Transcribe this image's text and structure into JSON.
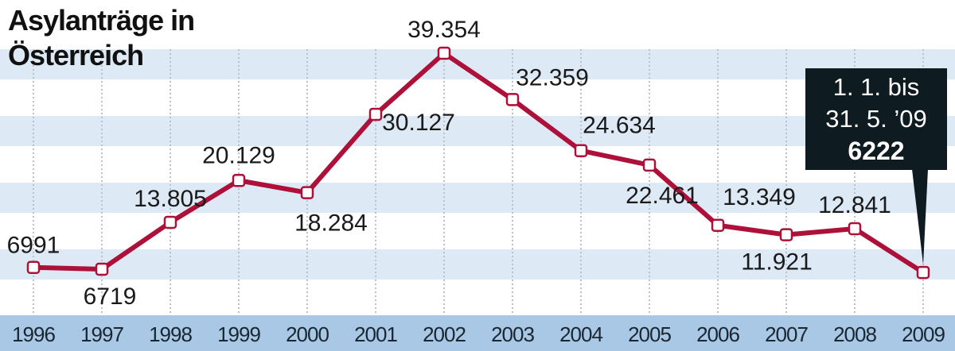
{
  "chart_data": {
    "type": "line",
    "title": "Asylanträge in Österreich",
    "categories": [
      "1996",
      "1997",
      "1998",
      "1999",
      "2000",
      "2001",
      "2002",
      "2003",
      "2004",
      "2005",
      "2006",
      "2007",
      "2008",
      "2009"
    ],
    "values": [
      6991,
      6719,
      13805,
      20129,
      18284,
      30127,
      39354,
      32359,
      24634,
      22461,
      13349,
      11921,
      12841,
      6222
    ],
    "value_labels": [
      "6991",
      "6719",
      "13.805",
      "20.129",
      "18.284",
      "30.127",
      "39.354",
      "32.359",
      "24.634",
      "22.461",
      "13.349",
      "11.921",
      "12.841",
      "6222"
    ],
    "annotation": "1. 1. bis 31. 5. ’09",
    "color": "#ad1038",
    "ylim": [
      0,
      45000
    ]
  }
}
